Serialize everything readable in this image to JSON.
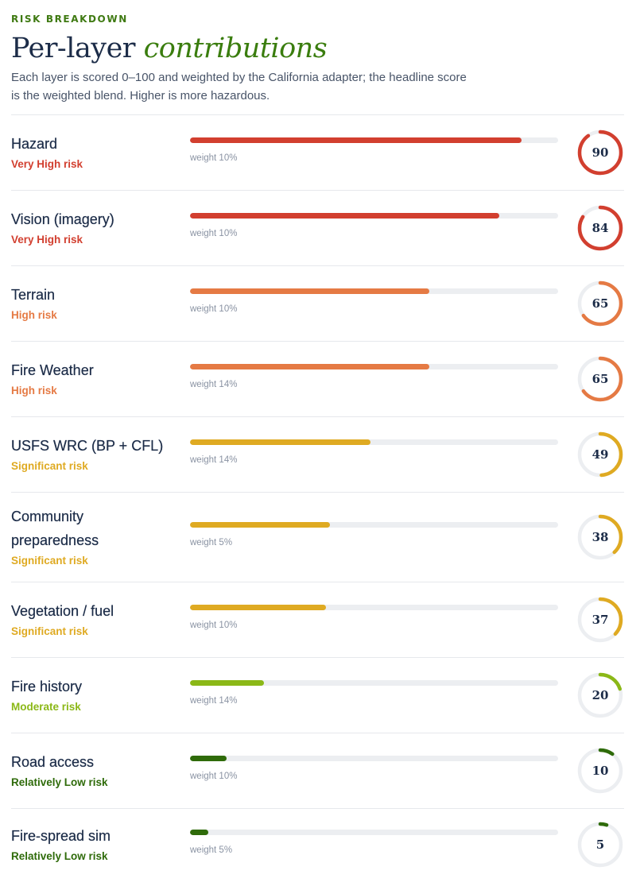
{
  "header": {
    "eyebrow": "RISK BREAKDOWN",
    "title_plain": "Per-layer",
    "title_accent": "contributions",
    "description": "Each layer is scored 0–100 and weighted by the California adapter; the headline score is the weighted blend. Higher is more hazardous."
  },
  "layers": [
    {
      "name": "Hazard",
      "risk": "Very High risk",
      "weight": "weight 10%",
      "score": 90,
      "color": "#d23f2f"
    },
    {
      "name": "Vision (imagery)",
      "risk": "Very High risk",
      "weight": "weight 10%",
      "score": 84,
      "color": "#d23f2f"
    },
    {
      "name": "Terrain",
      "risk": "High risk",
      "weight": "weight 10%",
      "score": 65,
      "color": "#e57a44"
    },
    {
      "name": "Fire Weather",
      "risk": "High risk",
      "weight": "weight 14%",
      "score": 65,
      "color": "#e57a44"
    },
    {
      "name": "USFS WRC (BP + CFL)",
      "risk": "Significant risk",
      "weight": "weight 14%",
      "score": 49,
      "color": "#dfaa22"
    },
    {
      "name": "Community preparedness",
      "risk": "Significant risk",
      "weight": "weight 5%",
      "score": 38,
      "color": "#dfaa22"
    },
    {
      "name": "Vegetation / fuel",
      "risk": "Significant risk",
      "weight": "weight 10%",
      "score": 37,
      "color": "#dfaa22"
    },
    {
      "name": "Fire history",
      "risk": "Moderate risk",
      "weight": "weight 14%",
      "score": 20,
      "color": "#8bb817"
    },
    {
      "name": "Road access",
      "risk": "Relatively Low risk",
      "weight": "weight 10%",
      "score": 10,
      "color": "#2f6b0a"
    },
    {
      "name": "Fire-spread sim",
      "risk": "Relatively Low risk",
      "weight": "weight 5%",
      "score": 5,
      "color": "#2f6b0a"
    }
  ],
  "colors": {
    "track": "#eceef1",
    "ring_track": "#eceef1"
  }
}
